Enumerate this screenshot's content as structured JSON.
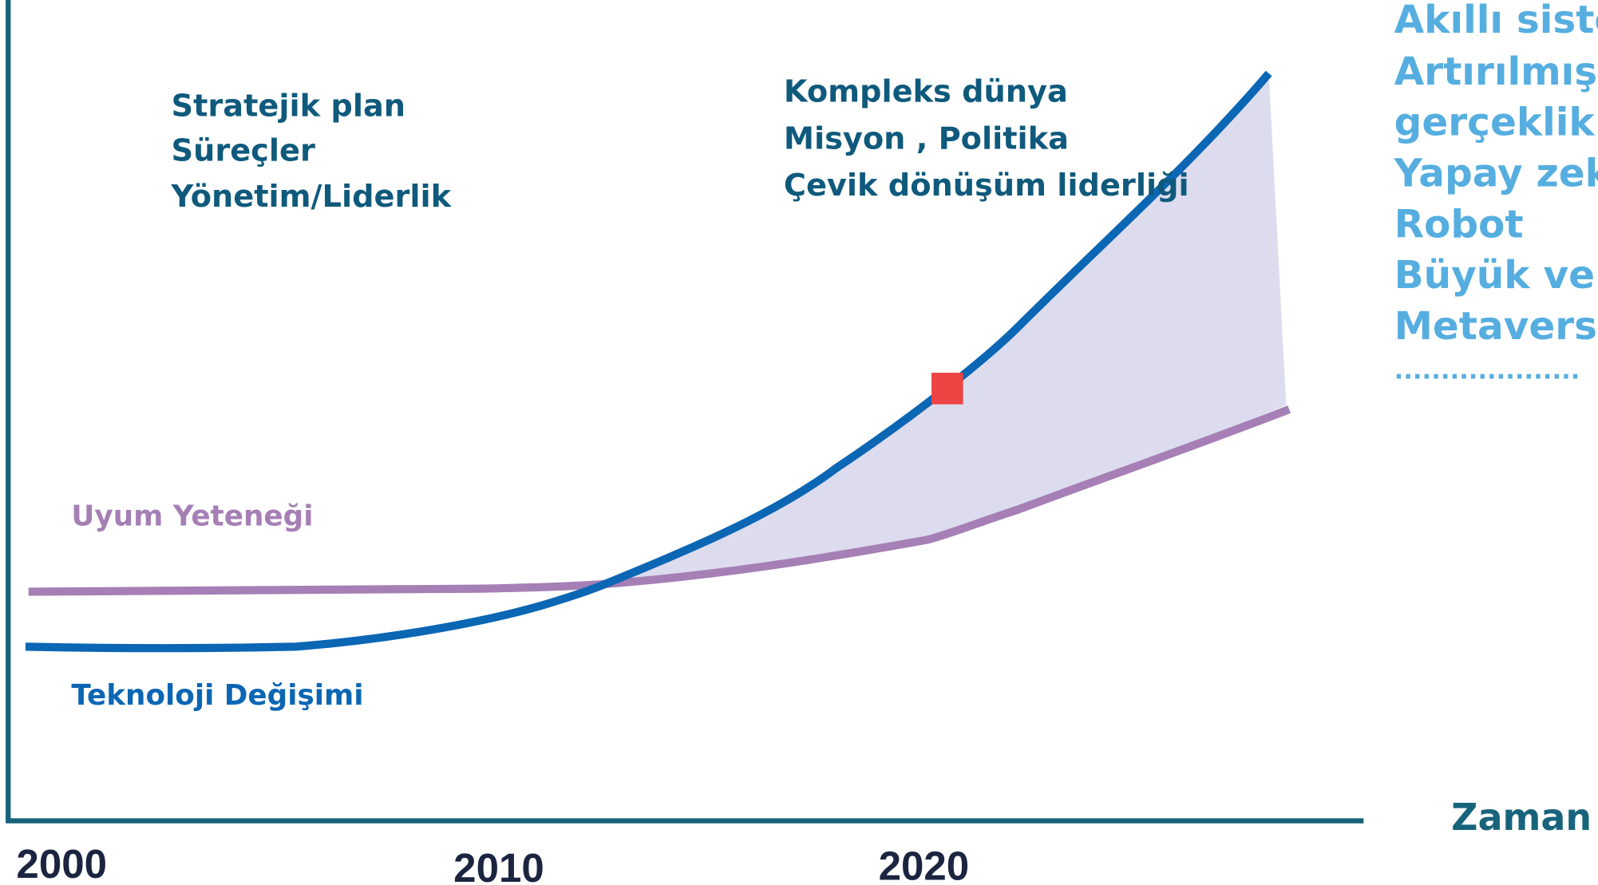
{
  "left_block": {
    "lines": [
      "Stratejik plan",
      "Süreçler",
      "Yönetim/Liderlik"
    ]
  },
  "middle_block": {
    "lines": [
      "Kompleks dünya",
      "Misyon , Politika",
      "Çevik dönüşüm liderliği"
    ]
  },
  "right_block": {
    "lines": [
      "Akıllı siste",
      "Artırılmış",
      "gerçeklik",
      "Yapay zeka",
      "Robot",
      "Büyük veri",
      "Metaverse",
      "...................."
    ]
  },
  "curves": {
    "adaptation_label": "Uyum Yeteneği",
    "technology_label": "Teknoloji Değişimi"
  },
  "axis": {
    "x_label": "Zaman",
    "years": [
      "2000",
      "2010",
      "2020"
    ]
  }
}
